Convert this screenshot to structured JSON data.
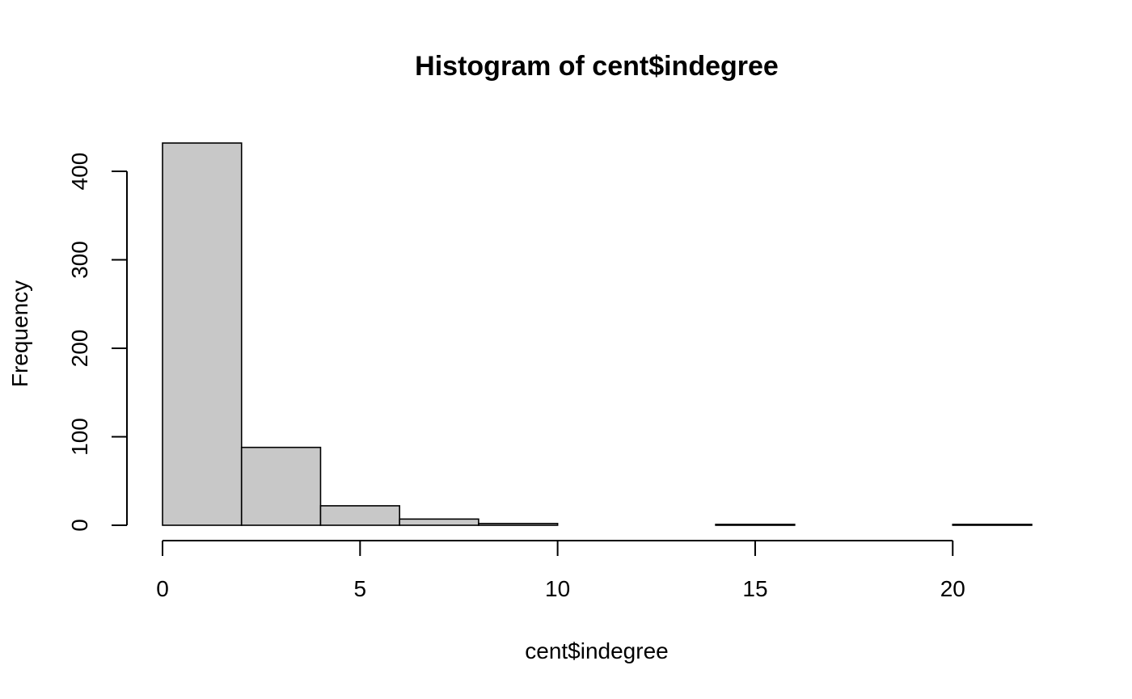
{
  "chart_data": {
    "type": "bar",
    "title": "Histogram of cent$indegree",
    "xlabel": "cent$indegree",
    "ylabel": "Frequency",
    "bins": [
      {
        "start": 0,
        "end": 2,
        "count": 432
      },
      {
        "start": 2,
        "end": 4,
        "count": 88
      },
      {
        "start": 4,
        "end": 6,
        "count": 22
      },
      {
        "start": 6,
        "end": 8,
        "count": 7
      },
      {
        "start": 8,
        "end": 10,
        "count": 2
      },
      {
        "start": 10,
        "end": 12,
        "count": 0
      },
      {
        "start": 12,
        "end": 14,
        "count": 0
      },
      {
        "start": 14,
        "end": 16,
        "count": 1
      },
      {
        "start": 16,
        "end": 18,
        "count": 0
      },
      {
        "start": 18,
        "end": 20,
        "count": 0
      },
      {
        "start": 20,
        "end": 22,
        "count": 1
      }
    ],
    "x_ticks": [
      0,
      5,
      10,
      15,
      20
    ],
    "y_ticks": [
      0,
      100,
      200,
      300,
      400
    ],
    "xlim": [
      0,
      22
    ],
    "ylim": [
      0,
      432
    ],
    "bar_color": "#c8c8c8",
    "grid": false
  }
}
